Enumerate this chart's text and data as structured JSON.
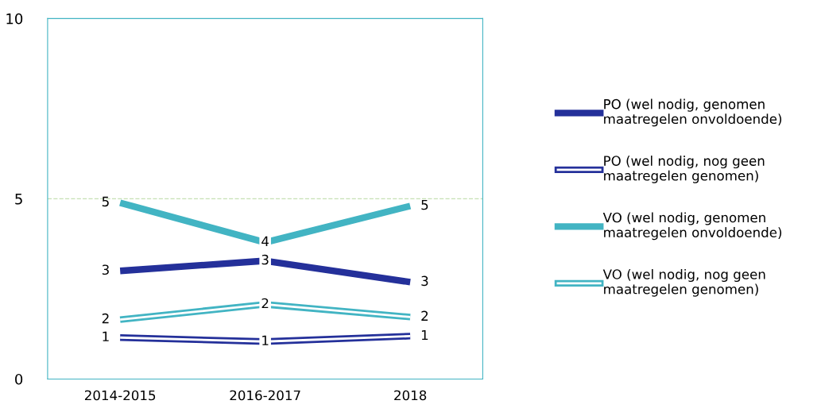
{
  "chart_data": {
    "type": "line",
    "categories": [
      "2014-2015",
      "2016-2017",
      "2018"
    ],
    "series": [
      {
        "name": "PO (wel nodig, genomen maatregelen onvoldoende)",
        "color": "#24309a",
        "values": [
          3.0,
          3.28,
          2.69
        ],
        "value_labels": [
          "3",
          "3",
          "3"
        ]
      },
      {
        "name": "PO (wel nodig, nog geen maatregelen genomen)",
        "color": "#24309a",
        "values": [
          1.15,
          1.04,
          1.19
        ],
        "value_labels": [
          "1",
          "1",
          "1"
        ]
      },
      {
        "name": "VO (wel nodig, genomen maatregelen onvoldoende)",
        "color": "#42b4c3",
        "values": [
          4.89,
          3.79,
          4.8
        ],
        "value_labels": [
          "5",
          "4",
          "5"
        ]
      },
      {
        "name": "VO (wel nodig, nog geen maatregelen genomen)",
        "color": "#42b4c3",
        "values": [
          1.65,
          2.07,
          1.72
        ],
        "value_labels": [
          "2",
          "2",
          "2"
        ]
      }
    ],
    "ylim": [
      0,
      10
    ],
    "yticks": [
      0,
      5,
      10
    ],
    "grid": false,
    "legend": "right",
    "marker": "none",
    "line_style": "solid",
    "ref_lines": [
      {
        "axis": "y",
        "value": 5,
        "color": "#c5e0b4",
        "line_style": "dashed"
      }
    ]
  }
}
